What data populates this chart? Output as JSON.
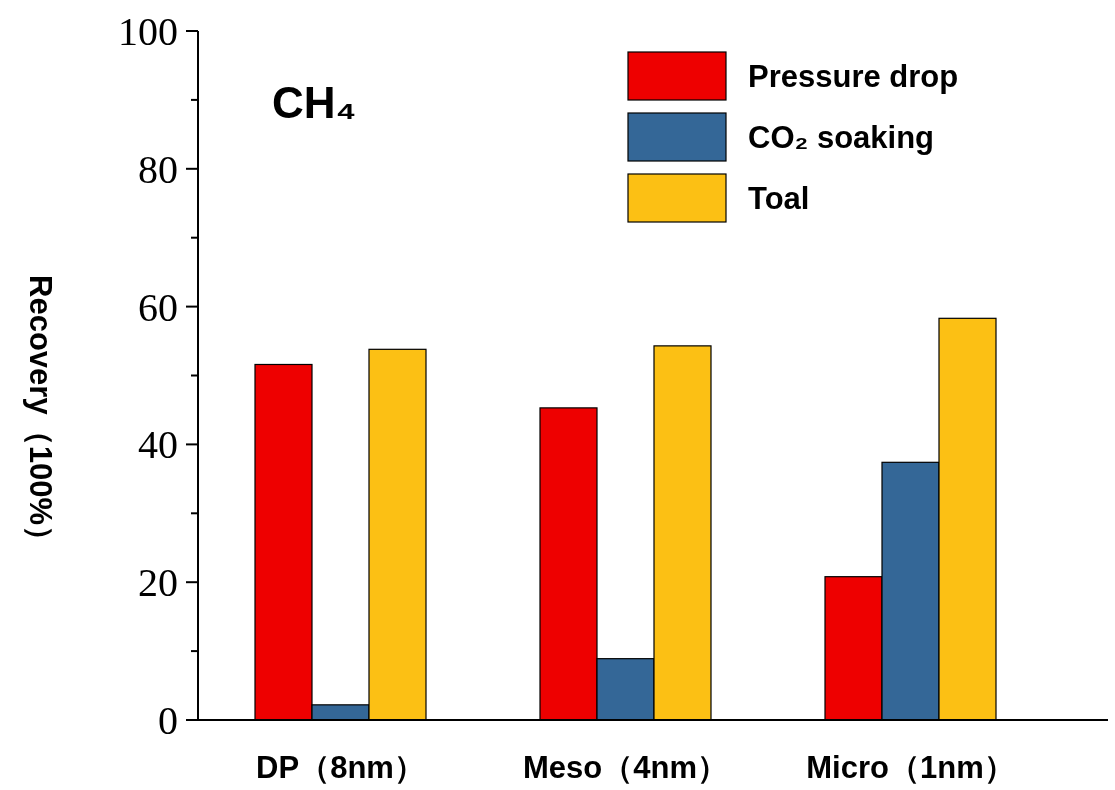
{
  "chart_data": {
    "type": "bar",
    "ylabel": "Recovery（100%）",
    "annotations": [
      "CH₄"
    ],
    "categories": [
      "DP（8nm）",
      "Meso（4nm）",
      "Micro（1nm）"
    ],
    "series": [
      {
        "name": "Pressure drop",
        "color": "#ee0000",
        "values": [
          51.6,
          45.3,
          20.8
        ]
      },
      {
        "name": "CO₂ soaking",
        "color": "#346797",
        "values": [
          2.2,
          8.9,
          37.4
        ]
      },
      {
        "name": "Toal",
        "color": "#fcc014",
        "values": [
          53.8,
          54.3,
          58.3
        ]
      }
    ],
    "ylim": [
      0,
      100
    ],
    "yticks": [
      0,
      {
        "value": 10,
        "label": null
      },
      20,
      {
        "value": 30,
        "label": null
      },
      40,
      {
        "value": 50,
        "label": null
      },
      60,
      {
        "value": 70,
        "label": null
      },
      80,
      {
        "value": 90,
        "label": null
      },
      100
    ],
    "grid": false,
    "legend": "top right"
  }
}
